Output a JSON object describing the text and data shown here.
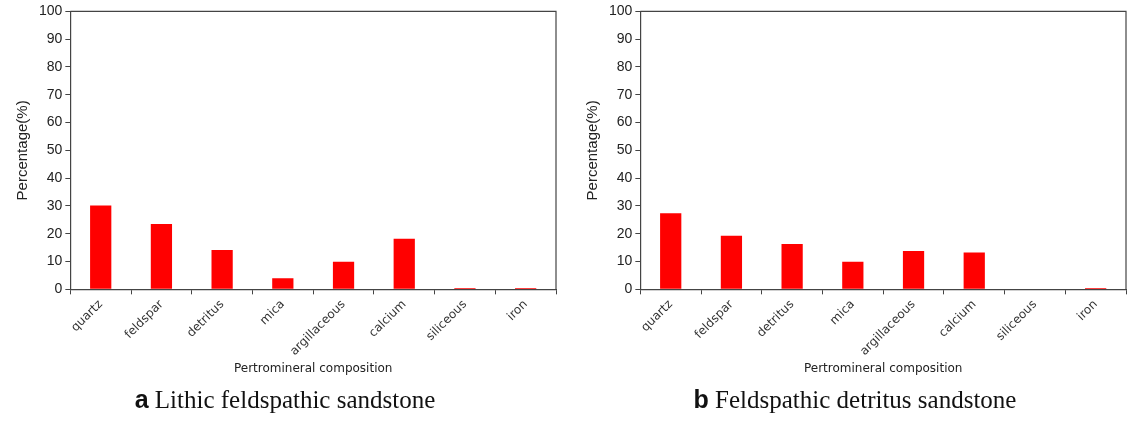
{
  "chart_data": [
    {
      "type": "bar",
      "title": "a Lithic feldspathic sandstone",
      "xlabel": "Pertromineral composition",
      "ylabel": "Percentage(%)",
      "categories": [
        "quartz",
        "feldspar",
        "detritus",
        "mica",
        "argillaceous",
        "calcium",
        "siliceous",
        "iron"
      ],
      "values": [
        30.2,
        23.5,
        14.2,
        4,
        9.9,
        18.2,
        0.5,
        0.5
      ],
      "color": "#ff0000",
      "ylim": [
        0,
        100
      ],
      "yticks": [
        0,
        10,
        20,
        30,
        40,
        50,
        60,
        70,
        80,
        90,
        100
      ],
      "grid": false,
      "legend": false
    },
    {
      "type": "bar",
      "title": "b Feldspathic detritus sandstone",
      "xlabel": "Pertromineral composition",
      "ylabel": "Percentage(%)",
      "categories": [
        "quartz",
        "feldspar",
        "detritus",
        "mica",
        "argillaceous",
        "calcium",
        "siliceous",
        "iron"
      ],
      "values": [
        27.4,
        19.3,
        16.3,
        9.9,
        13.8,
        13.3,
        0,
        0.5
      ],
      "color": "#ff0000",
      "ylim": [
        0,
        100
      ],
      "yticks": [
        0,
        10,
        20,
        30,
        40,
        50,
        60,
        70,
        80,
        90,
        100
      ],
      "grid": false,
      "legend": false
    }
  ]
}
